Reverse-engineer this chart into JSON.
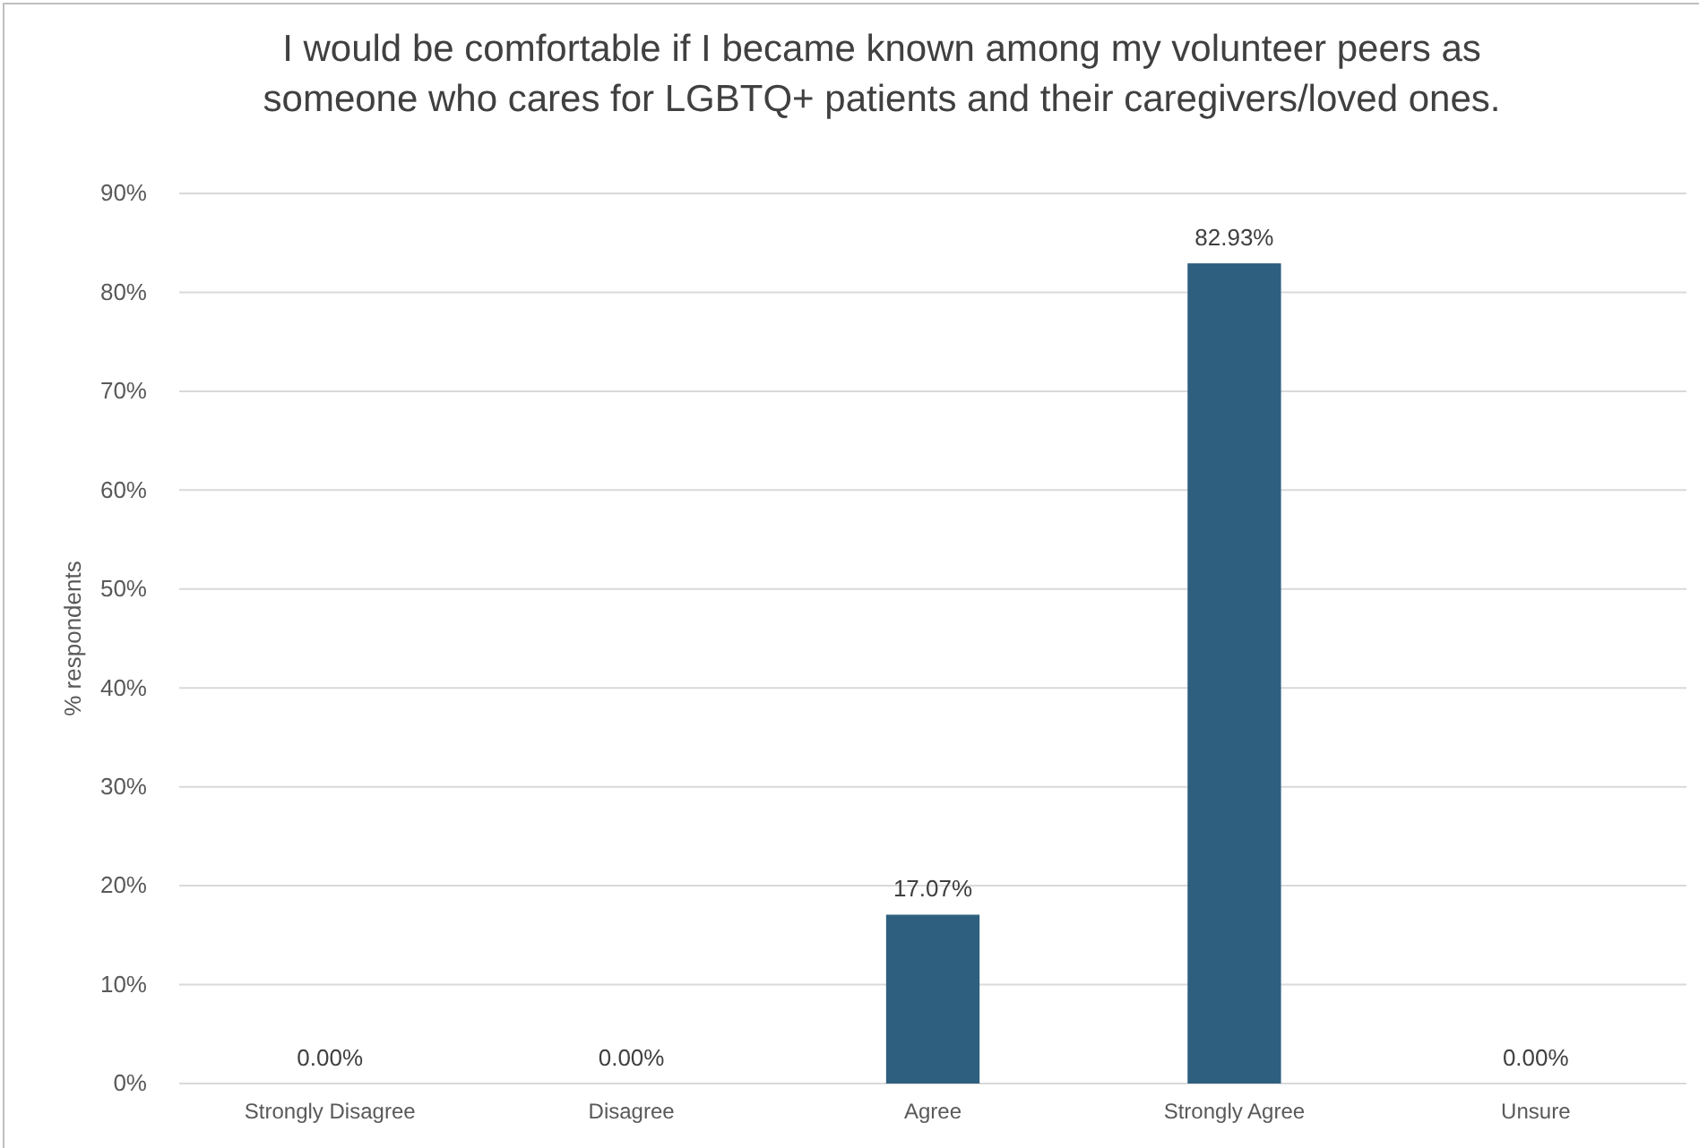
{
  "chart_data": {
    "type": "bar",
    "title": "I would be comfortable if I became known among my volunteer peers as someone who cares for LGBTQ+ patients and their caregivers/loved ones.",
    "ylabel": "% respondents",
    "categories": [
      "Strongly Disagree",
      "Disagree",
      "Agree",
      "Strongly Agree",
      "Unsure"
    ],
    "values": [
      0,
      0,
      17.07,
      82.93,
      0
    ],
    "value_labels": [
      "0.00%",
      "0.00%",
      "17.07%",
      "82.93%",
      "0.00%"
    ],
    "color": "#2e5f7f",
    "ylim": [
      0,
      90
    ],
    "yticks": [
      {
        "value": 0,
        "label": "0%"
      },
      {
        "value": 10,
        "label": "10%"
      },
      {
        "value": 20,
        "label": "20%"
      },
      {
        "value": 30,
        "label": "30%"
      },
      {
        "value": 40,
        "label": "40%"
      },
      {
        "value": 50,
        "label": "50%"
      },
      {
        "value": 60,
        "label": "60%"
      },
      {
        "value": 70,
        "label": "70%"
      },
      {
        "value": 80,
        "label": "80%"
      },
      {
        "value": 90,
        "label": "90%"
      }
    ],
    "grid": "y"
  }
}
